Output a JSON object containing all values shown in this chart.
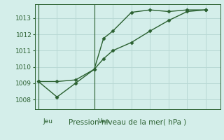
{
  "line1_x": [
    0,
    1,
    2,
    3,
    3.5,
    4,
    5,
    6,
    7,
    8,
    9
  ],
  "line1_y": [
    1009.1,
    1009.1,
    1009.2,
    1009.85,
    1011.75,
    1012.2,
    1013.35,
    1013.5,
    1013.4,
    1013.5,
    1013.5
  ],
  "line2_x": [
    0,
    1,
    2,
    3,
    3.5,
    4,
    5,
    6,
    7,
    8,
    9
  ],
  "line2_y": [
    1009.1,
    1008.15,
    1009.0,
    1009.85,
    1010.5,
    1011.0,
    1011.5,
    1012.2,
    1012.85,
    1013.4,
    1013.5
  ],
  "line_color": "#2a6030",
  "bg_color": "#d4eeea",
  "grid_color": "#b8d8d4",
  "ylabel_ticks": [
    1008,
    1009,
    1010,
    1011,
    1012,
    1013
  ],
  "ylim": [
    1007.4,
    1013.85
  ],
  "xlim": [
    -0.2,
    9.8
  ],
  "xlabel": "Pression niveau de la mer( hPa )",
  "xlabel_fontsize": 7.5,
  "tick_fontsize": 6.5,
  "marker": "D",
  "markersize": 2.5,
  "linewidth": 1.0,
  "n_xgrid": 10,
  "day_labels": [
    "Jeu",
    "Ven"
  ],
  "day_positions": [
    0.5,
    3.5
  ]
}
